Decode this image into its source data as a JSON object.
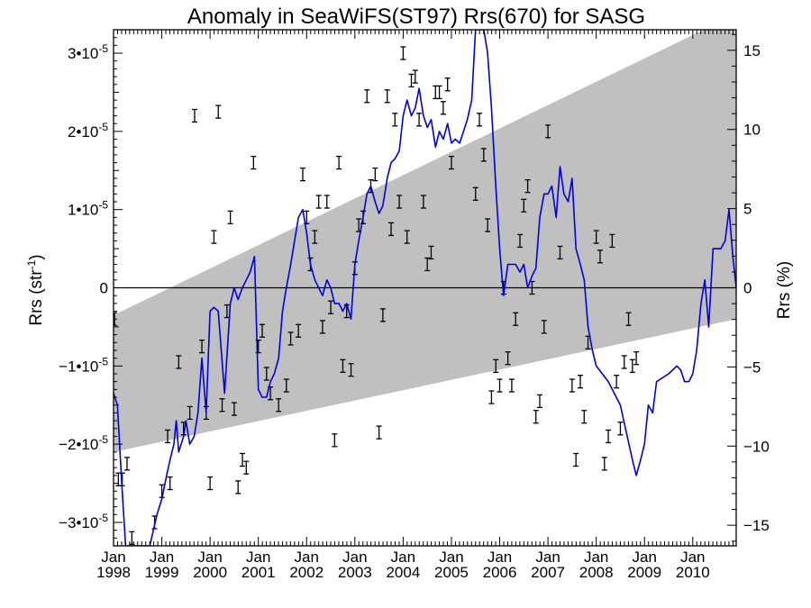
{
  "chart_data": {
    "type": "line",
    "title": "Anomaly in SeaWiFS(ST97) Rrs(670) for SASG",
    "ylabel_left_main": "Rrs (str",
    "ylabel_left_sup": "-1",
    "ylabel_left_close": ")",
    "ylabel_right": "Rrs (%)",
    "xlabel": "",
    "xlim": [
      1998.0,
      2010.9
    ],
    "ylim": [
      -3.3e-05,
      3.3e-05
    ],
    "ylim_right": [
      -16.3,
      16.3
    ],
    "x_ticks": [
      {
        "month": "Jan",
        "year": "1998",
        "x": 1998.0
      },
      {
        "month": "Jan",
        "year": "1999",
        "x": 1999.0
      },
      {
        "month": "Jan",
        "year": "2000",
        "x": 2000.0
      },
      {
        "month": "Jan",
        "year": "2001",
        "x": 2001.0
      },
      {
        "month": "Jan",
        "year": "2002",
        "x": 2002.0
      },
      {
        "month": "Jan",
        "year": "2003",
        "x": 2003.0
      },
      {
        "month": "Jan",
        "year": "2004",
        "x": 2004.0
      },
      {
        "month": "Jan",
        "year": "2005",
        "x": 2005.0
      },
      {
        "month": "Jan",
        "year": "2006",
        "x": 2006.0
      },
      {
        "month": "Jan",
        "year": "2007",
        "x": 2007.0
      },
      {
        "month": "Jan",
        "year": "2008",
        "x": 2008.0
      },
      {
        "month": "Jan",
        "year": "2009",
        "x": 2009.0
      },
      {
        "month": "Jan",
        "year": "2010",
        "x": 2010.0
      }
    ],
    "y_ticks_left": [
      {
        "mant": "3•10",
        "exp": "-5",
        "y": 3e-05
      },
      {
        "mant": "2•10",
        "exp": "-5",
        "y": 2e-05
      },
      {
        "mant": "1•10",
        "exp": "-5",
        "y": 1e-05
      },
      {
        "mant": "0",
        "exp": "",
        "y": 0
      },
      {
        "mant": "−1•10",
        "exp": "-5",
        "y": -1e-05
      },
      {
        "mant": "−2•10",
        "exp": "-5",
        "y": -2e-05
      },
      {
        "mant": "−3•10",
        "exp": "-5",
        "y": -3e-05
      }
    ],
    "y_ticks_right": [
      {
        "label": "15",
        "y": 15
      },
      {
        "label": "10",
        "y": 10
      },
      {
        "label": "5",
        "y": 5
      },
      {
        "label": "0",
        "y": 0
      },
      {
        "label": "−5",
        "y": -5
      },
      {
        "label": "−10",
        "y": -10
      },
      {
        "label": "−15",
        "y": -15
      }
    ],
    "uncertainty_band": {
      "color": "#c0c0c0",
      "upper": [
        [
          1998.0,
          -3.5e-06
        ],
        [
          2010.9,
          3.5e-05
        ]
      ],
      "lower": [
        [
          1998.0,
          -2.1e-05
        ],
        [
          2010.9,
          -4e-06
        ]
      ]
    },
    "zero_line": true,
    "series": [
      {
        "color": "#0000e0",
        "points": [
          [
            1998.0,
            -1.35e-05
          ],
          [
            1998.08,
            -1.5e-05
          ],
          [
            1998.17,
            -2.5e-05
          ],
          [
            1998.25,
            -3.3e-05
          ],
          [
            1998.6,
            -3.3e-05
          ],
          [
            1998.75,
            -3.3e-05
          ],
          [
            1998.9,
            -2.9e-05
          ],
          [
            1999.0,
            -2.7e-05
          ],
          [
            1999.1,
            -2.4e-05
          ],
          [
            1999.17,
            -2.2e-05
          ],
          [
            1999.25,
            -2e-05
          ],
          [
            1999.3,
            -1.7e-05
          ],
          [
            1999.35,
            -2.1e-05
          ],
          [
            1999.45,
            -1.9e-05
          ],
          [
            1999.5,
            -1.7e-05
          ],
          [
            1999.58,
            -2e-05
          ],
          [
            1999.67,
            -1.9e-05
          ],
          [
            1999.75,
            -1.6e-05
          ],
          [
            1999.83,
            -9e-06
          ],
          [
            1999.92,
            -1.6e-05
          ],
          [
            2000.0,
            -3e-06
          ],
          [
            2000.08,
            -2.5e-06
          ],
          [
            2000.17,
            -3e-06
          ],
          [
            2000.3,
            -1.35e-05
          ],
          [
            2000.42,
            -2e-06
          ],
          [
            2000.5,
            0.0
          ],
          [
            2000.58,
            -1.5e-06
          ],
          [
            2000.67,
            0.0
          ],
          [
            2000.75,
            1e-06
          ],
          [
            2000.83,
            2e-06
          ],
          [
            2000.92,
            4e-06
          ],
          [
            2001.0,
            -1.3e-05
          ],
          [
            2001.08,
            -1.4e-05
          ],
          [
            2001.17,
            -1.4e-05
          ],
          [
            2001.25,
            -1.2e-05
          ],
          [
            2001.33,
            -1.1e-05
          ],
          [
            2001.42,
            -9e-06
          ],
          [
            2001.5,
            -3e-06
          ],
          [
            2001.58,
            0.0
          ],
          [
            2001.67,
            3e-06
          ],
          [
            2001.75,
            6e-06
          ],
          [
            2001.83,
            9e-06
          ],
          [
            2001.92,
            1e-05
          ],
          [
            2002.0,
            7e-06
          ],
          [
            2002.08,
            3e-06
          ],
          [
            2002.17,
            1e-06
          ],
          [
            2002.25,
            0.0
          ],
          [
            2002.33,
            -1e-06
          ],
          [
            2002.42,
            1e-06
          ],
          [
            2002.5,
            0.0
          ],
          [
            2002.58,
            -2e-06
          ],
          [
            2002.67,
            -2e-06
          ],
          [
            2002.75,
            -3e-06
          ],
          [
            2002.83,
            -2e-06
          ],
          [
            2002.92,
            -4e-06
          ],
          [
            2003.0,
            3e-06
          ],
          [
            2003.08,
            6e-06
          ],
          [
            2003.17,
            9e-06
          ],
          [
            2003.25,
            1.2e-05
          ],
          [
            2003.33,
            1.3e-05
          ],
          [
            2003.42,
            1.1e-05
          ],
          [
            2003.5,
            9.5e-06
          ],
          [
            2003.58,
            1.05e-05
          ],
          [
            2003.67,
            1.4e-05
          ],
          [
            2003.75,
            1.6e-05
          ],
          [
            2003.83,
            1.65e-05
          ],
          [
            2003.92,
            1.75e-05
          ],
          [
            2004.0,
            2.2e-05
          ],
          [
            2004.08,
            2.4e-05
          ],
          [
            2004.17,
            2.2e-05
          ],
          [
            2004.25,
            2.3e-05
          ],
          [
            2004.33,
            2.55e-05
          ],
          [
            2004.42,
            2.2e-05
          ],
          [
            2004.5,
            2.05e-05
          ],
          [
            2004.58,
            2.15e-05
          ],
          [
            2004.67,
            1.8e-05
          ],
          [
            2004.75,
            2e-05
          ],
          [
            2004.83,
            1.9e-05
          ],
          [
            2004.92,
            2.1e-05
          ],
          [
            2005.0,
            1.85e-05
          ],
          [
            2005.08,
            1.9e-05
          ],
          [
            2005.17,
            1.85e-05
          ],
          [
            2005.25,
            2e-05
          ],
          [
            2005.33,
            2.15e-05
          ],
          [
            2005.42,
            2.4e-05
          ],
          [
            2005.5,
            3.3e-05
          ],
          [
            2005.67,
            3.3e-05
          ],
          [
            2005.75,
            3e-05
          ],
          [
            2005.83,
            2.3e-05
          ],
          [
            2005.92,
            1.3e-05
          ],
          [
            2006.0,
            5e-06
          ],
          [
            2006.08,
            -1e-06
          ],
          [
            2006.17,
            3e-06
          ],
          [
            2006.25,
            3e-06
          ],
          [
            2006.33,
            3e-06
          ],
          [
            2006.42,
            2e-06
          ],
          [
            2006.5,
            3e-06
          ],
          [
            2006.58,
            0.0
          ],
          [
            2006.67,
            1.5e-06
          ],
          [
            2006.75,
            2.5e-06
          ],
          [
            2006.83,
            9e-06
          ],
          [
            2006.92,
            1.2e-05
          ],
          [
            2007.0,
            1.2e-05
          ],
          [
            2007.08,
            1.3e-05
          ],
          [
            2007.17,
            9e-06
          ],
          [
            2007.25,
            1.55e-05
          ],
          [
            2007.33,
            1.2e-05
          ],
          [
            2007.42,
            1.1e-05
          ],
          [
            2007.5,
            1.4e-05
          ],
          [
            2007.58,
            5e-06
          ],
          [
            2007.67,
            3e-06
          ],
          [
            2007.75,
            1e-06
          ],
          [
            2007.83,
            -5e-06
          ],
          [
            2007.92,
            -8e-06
          ],
          [
            2008.0,
            -1e-05
          ],
          [
            2008.25,
            -1.2e-05
          ],
          [
            2008.5,
            -1.5e-05
          ],
          [
            2008.75,
            -2.2e-05
          ],
          [
            2008.83,
            -2.4e-05
          ],
          [
            2008.92,
            -2.2e-05
          ],
          [
            2009.0,
            -2e-05
          ],
          [
            2009.08,
            -1.5e-05
          ],
          [
            2009.17,
            -1.6e-05
          ],
          [
            2009.25,
            -1.2e-05
          ],
          [
            2009.5,
            -1.1e-05
          ],
          [
            2009.67,
            -1e-05
          ],
          [
            2009.75,
            -1.05e-05
          ],
          [
            2009.83,
            -1.2e-05
          ],
          [
            2009.92,
            -1.2e-05
          ],
          [
            2010.0,
            -1.1e-05
          ],
          [
            2010.08,
            -8e-06
          ],
          [
            2010.17,
            -2e-06
          ],
          [
            2010.25,
            1e-06
          ],
          [
            2010.33,
            -5e-06
          ],
          [
            2010.42,
            5e-06
          ],
          [
            2010.58,
            5e-06
          ],
          [
            2010.67,
            6e-06
          ],
          [
            2010.75,
            1e-05
          ],
          [
            2010.83,
            4e-06
          ],
          [
            2010.9,
            0.0
          ]
        ]
      }
    ],
    "error_bar_points": [
      [
        1998.02,
        -4e-06
      ],
      [
        1998.1,
        -2.45e-05
      ],
      [
        1998.18,
        -2.45e-05
      ],
      [
        1998.28,
        -2.25e-05
      ],
      [
        1998.38,
        -3.2e-05
      ],
      [
        1998.85,
        -3e-05
      ],
      [
        1999.0,
        -2.6e-05
      ],
      [
        1999.12,
        -1.9e-05
      ],
      [
        1999.17,
        -2.5e-05
      ],
      [
        1999.35,
        -9.5e-06
      ],
      [
        1999.45,
        -1.8e-05
      ],
      [
        1999.58,
        -1.6e-05
      ],
      [
        1999.68,
        2.2e-05
      ],
      [
        1999.83,
        -7.5e-06
      ],
      [
        1999.92,
        -1.6e-05
      ],
      [
        2000.0,
        -2.5e-05
      ],
      [
        2000.08,
        6.5e-06
      ],
      [
        2000.17,
        2.25e-05
      ],
      [
        2000.25,
        -1.5e-05
      ],
      [
        2000.35,
        -3e-06
      ],
      [
        2000.42,
        9e-06
      ],
      [
        2000.5,
        -1.55e-05
      ],
      [
        2000.58,
        -2.55e-05
      ],
      [
        2000.67,
        -2.2e-05
      ],
      [
        2000.75,
        -2.3e-05
      ],
      [
        2000.9,
        1.6e-05
      ],
      [
        2001.0,
        -7.5e-06
      ],
      [
        2001.08,
        -5.5e-06
      ],
      [
        2001.17,
        -1.1e-05
      ],
      [
        2001.25,
        -1.35e-05
      ],
      [
        2001.42,
        -1.5e-05
      ],
      [
        2001.58,
        -1.25e-05
      ],
      [
        2001.67,
        -6.5e-06
      ],
      [
        2001.83,
        -5.5e-06
      ],
      [
        2001.92,
        1.45e-05
      ],
      [
        2002.0,
        9e-06
      ],
      [
        2002.08,
        3e-06
      ],
      [
        2002.17,
        6.5e-06
      ],
      [
        2002.25,
        1.1e-05
      ],
      [
        2002.33,
        -5e-06
      ],
      [
        2002.42,
        1.1e-05
      ],
      [
        2002.5,
        -2.5e-06
      ],
      [
        2002.58,
        -1.95e-05
      ],
      [
        2002.67,
        1.6e-05
      ],
      [
        2002.75,
        -1e-05
      ],
      [
        2002.83,
        -3e-06
      ],
      [
        2002.92,
        -1.05e-05
      ],
      [
        2003.0,
        2.5e-06
      ],
      [
        2003.08,
        8e-06
      ],
      [
        2003.17,
        9e-06
      ],
      [
        2003.25,
        2.45e-05
      ],
      [
        2003.33,
        1.3e-05
      ],
      [
        2003.42,
        1.45e-05
      ],
      [
        2003.5,
        -1.85e-05
      ],
      [
        2003.58,
        -3.5e-06
      ],
      [
        2003.67,
        2.45e-05
      ],
      [
        2003.75,
        7.5e-06
      ],
      [
        2003.83,
        2.15e-05
      ],
      [
        2003.92,
        1.1e-05
      ],
      [
        2004.0,
        3e-05
      ],
      [
        2004.08,
        6.5e-06
      ],
      [
        2004.17,
        2.65e-05
      ],
      [
        2004.25,
        2.7e-05
      ],
      [
        2004.33,
        2.15e-05
      ],
      [
        2004.42,
        1.1e-05
      ],
      [
        2004.5,
        3e-06
      ],
      [
        2004.58,
        4.5e-06
      ],
      [
        2004.67,
        2.5e-05
      ],
      [
        2004.75,
        2.5e-05
      ],
      [
        2004.83,
        2.3e-05
      ],
      [
        2004.92,
        2.6e-05
      ],
      [
        2005.0,
        1.6e-05
      ],
      [
        2005.5,
        1.2e-05
      ],
      [
        2005.58,
        2.15e-05
      ],
      [
        2005.67,
        1.7e-05
      ],
      [
        2005.75,
        8e-06
      ],
      [
        2005.83,
        -1.4e-05
      ],
      [
        2005.92,
        -1e-05
      ],
      [
        2006.0,
        -1.25e-05
      ],
      [
        2006.08,
        0.0
      ],
      [
        2006.17,
        -9e-06
      ],
      [
        2006.25,
        -1.25e-05
      ],
      [
        2006.33,
        -4e-06
      ],
      [
        2006.42,
        6e-06
      ],
      [
        2006.5,
        1.05e-05
      ],
      [
        2006.58,
        1.3e-05
      ],
      [
        2006.67,
        0.0
      ],
      [
        2006.75,
        -1.65e-05
      ],
      [
        2006.83,
        -1.45e-05
      ],
      [
        2006.92,
        -5e-06
      ],
      [
        2007.0,
        2e-05
      ],
      [
        2007.25,
        4.5e-06
      ],
      [
        2007.5,
        -1.25e-05
      ],
      [
        2007.58,
        -2.2e-05
      ],
      [
        2007.67,
        -1.2e-05
      ],
      [
        2007.75,
        -1.65e-05
      ],
      [
        2007.83,
        -7e-06
      ],
      [
        2008.0,
        6.5e-06
      ],
      [
        2008.08,
        4e-06
      ],
      [
        2008.17,
        -2.25e-05
      ],
      [
        2008.25,
        -1.9e-05
      ],
      [
        2008.33,
        6e-06
      ],
      [
        2008.42,
        -1.2e-05
      ],
      [
        2008.5,
        -1.8e-05
      ],
      [
        2008.58,
        -9.5e-06
      ],
      [
        2008.67,
        -4e-06
      ],
      [
        2008.75,
        -1e-05
      ],
      [
        2008.83,
        -9e-06
      ]
    ]
  }
}
